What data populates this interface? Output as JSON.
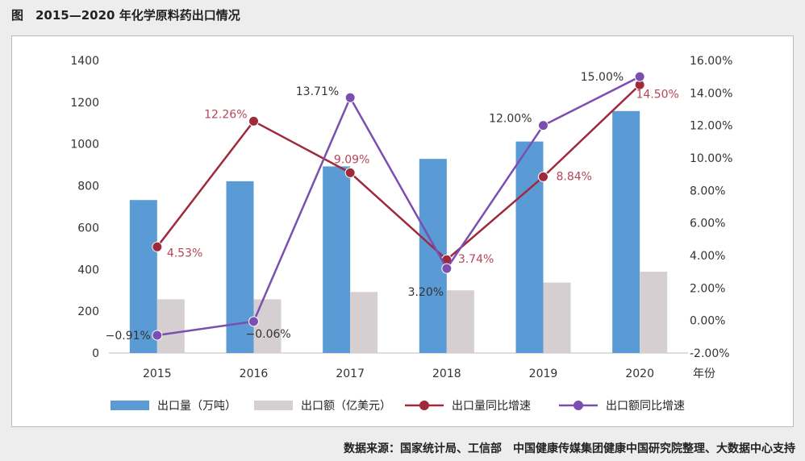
{
  "figure": {
    "title": "图　2015—2020 年化学原料药出口情况",
    "source": "数据来源：国家统计局、工信部　中国健康传媒集团健康中国研究院整理、大数据中心支持"
  },
  "chart_data": {
    "type": "bar",
    "categories": [
      "2015",
      "2016",
      "2017",
      "2018",
      "2019",
      "2020"
    ],
    "xlabel": "年份",
    "y_left": {
      "min": 0,
      "max": 1400,
      "ticks": [
        0,
        200,
        400,
        600,
        800,
        1000,
        1200,
        1400
      ]
    },
    "y_right": {
      "min": -2,
      "max": 16,
      "ticks": [
        -2,
        0,
        2,
        4,
        6,
        8,
        10,
        12,
        14,
        16
      ],
      "tick_labels": [
        "-2.00%",
        "0.00%",
        "2.00%",
        "4.00%",
        "6.00%",
        "8.00%",
        "10.00%",
        "12.00%",
        "14.00%",
        "16.00%"
      ]
    },
    "series": [
      {
        "name": "出口量（万吨）",
        "type": "bar",
        "axis": "left",
        "color": "#5b9bd5",
        "values": [
          732,
          822,
          893,
          929,
          1012,
          1158
        ]
      },
      {
        "name": "出口额（亿美元）",
        "type": "bar",
        "axis": "left",
        "color": "#d5cfd1",
        "values": [
          257,
          257,
          292,
          300,
          337,
          389
        ]
      },
      {
        "name": "出口量同比增速",
        "type": "line",
        "axis": "right",
        "color": "#9e2a3b",
        "label_color": "#b5455b",
        "values": [
          4.53,
          12.26,
          9.09,
          3.74,
          8.84,
          14.5
        ],
        "labels": [
          "4.53%",
          "12.26%",
          "9.09%",
          "3.74%",
          "8.84%",
          "14.50%"
        ]
      },
      {
        "name": "出口额同比增速",
        "type": "line",
        "axis": "right",
        "color": "#7a4fb0",
        "label_color": "#333333",
        "values": [
          -0.91,
          -0.06,
          13.71,
          3.2,
          12.0,
          15.0
        ],
        "labels": [
          "−0.91%",
          "−0.06%",
          "13.71%",
          "3.20%",
          "12.00%",
          "15.00%"
        ]
      }
    ],
    "legend": "bottom",
    "grid": false
  }
}
